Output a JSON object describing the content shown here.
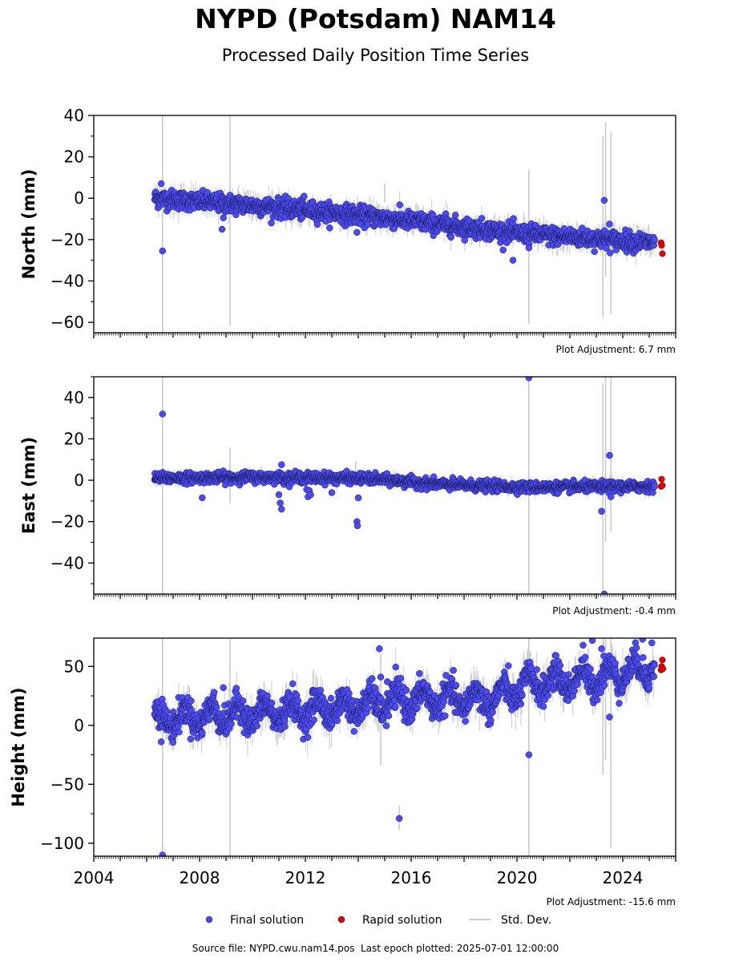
{
  "title": "NYPD (Potsdam) NAM14",
  "subtitle": "Processed Daily Position Time Series",
  "footer": {
    "source_label": "Source file:",
    "source_file": "NYPD.cwu.nam14.pos",
    "last_epoch_label": "Last epoch plotted:",
    "last_epoch": "2025-07-01 12:00:00"
  },
  "legend": [
    {
      "label": "Final solution",
      "marker": "dot",
      "color": "#4b4bf0"
    },
    {
      "label": "Rapid solution",
      "marker": "dot",
      "color": "#e00000"
    },
    {
      "label": "Std. Dev.",
      "marker": "line",
      "color": "#cccccc"
    }
  ],
  "colors": {
    "final": "#4b4bf0",
    "rapid": "#e00000",
    "stddev": "#cccccc"
  },
  "chart_data": [
    {
      "type": "scatter",
      "ylabel": "North (mm)",
      "ylim": [
        -65,
        40
      ],
      "xlim": [
        2004,
        2026
      ],
      "yticks": [
        40,
        20,
        0,
        -20,
        -40,
        -60
      ],
      "adjustment": "Plot Adjustment: 6.7 mm",
      "trend": [
        [
          2006.3,
          0
        ],
        [
          2010,
          -3.5
        ],
        [
          2013,
          -7
        ],
        [
          2016,
          -11
        ],
        [
          2020,
          -17
        ],
        [
          2025.2,
          -21.5
        ]
      ],
      "scatter_noise": 2.2,
      "outliers": [
        [
          2006.55,
          7
        ],
        [
          2006.6,
          -25.5
        ],
        [
          2008.85,
          -15
        ],
        [
          2008.9,
          -9.5
        ],
        [
          2011.95,
          1
        ],
        [
          2013.95,
          -16.5
        ],
        [
          2019.85,
          -30
        ],
        [
          2020.45,
          -24
        ],
        [
          2023.3,
          -1
        ],
        [
          2023.5,
          -12.5
        ]
      ],
      "rapid": [
        [
          2025.45,
          -21.5
        ],
        [
          2025.47,
          -22.8
        ],
        [
          2025.5,
          -26.8
        ]
      ],
      "stddev_bars": [
        [
          2006.6,
          -65,
          40
        ],
        [
          2009.15,
          -62,
          40
        ],
        [
          2015,
          -2,
          7
        ],
        [
          2020.45,
          -61,
          14
        ],
        [
          2023.25,
          -58,
          30
        ],
        [
          2023.35,
          -38,
          37
        ],
        [
          2023.55,
          -56,
          32
        ]
      ]
    },
    {
      "type": "scatter",
      "ylabel": "East (mm)",
      "ylim": [
        -55,
        50
      ],
      "xlim": [
        2004,
        2026
      ],
      "yticks": [
        40,
        20,
        0,
        -20,
        -40
      ],
      "adjustment": "Plot Adjustment: -0.4 mm",
      "trend": [
        [
          2006.3,
          1
        ],
        [
          2010,
          1.5
        ],
        [
          2014,
          1
        ],
        [
          2015.2,
          0
        ],
        [
          2017,
          -2
        ],
        [
          2020.5,
          -3.5
        ],
        [
          2025.2,
          -3
        ]
      ],
      "scatter_noise": 1.2,
      "outliers": [
        [
          2006.6,
          32
        ],
        [
          2008.1,
          -8.5
        ],
        [
          2011,
          -7
        ],
        [
          2011.05,
          -11
        ],
        [
          2011.1,
          -14
        ],
        [
          2011.1,
          7.5
        ],
        [
          2012.05,
          -4.5
        ],
        [
          2012.1,
          -8
        ],
        [
          2012.15,
          -5
        ],
        [
          2012.2,
          -7
        ],
        [
          2013,
          -6
        ],
        [
          2013.95,
          -20
        ],
        [
          2013.97,
          -22
        ],
        [
          2014,
          -8.5
        ],
        [
          2020.45,
          49.5
        ],
        [
          2023.2,
          -15
        ],
        [
          2023.3,
          -55
        ],
        [
          2023.5,
          12
        ],
        [
          2023.55,
          -8
        ]
      ],
      "rapid": [
        [
          2025.45,
          -3
        ],
        [
          2025.47,
          0.5
        ],
        [
          2025.5,
          -2.5
        ]
      ],
      "stddev_bars": [
        [
          2006.6,
          -55,
          50
        ],
        [
          2009.15,
          -11,
          16
        ],
        [
          2013.9,
          -3,
          9
        ],
        [
          2020.45,
          -55,
          50
        ],
        [
          2023.25,
          -55,
          47
        ],
        [
          2023.35,
          -30,
          50
        ],
        [
          2023.55,
          -25,
          50
        ]
      ]
    },
    {
      "type": "scatter",
      "ylabel": "Height (mm)",
      "ylim": [
        -111,
        74
      ],
      "xlim": [
        2004,
        2026
      ],
      "yticks": [
        50,
        0,
        -50,
        -100
      ],
      "adjustment": "Plot Adjustment: -15.6 mm",
      "xlabel_ticks": [
        2004,
        2008,
        2012,
        2016,
        2020,
        2024
      ],
      "trend": [
        [
          2006.3,
          5
        ],
        [
          2010,
          10
        ],
        [
          2014,
          16
        ],
        [
          2016,
          22
        ],
        [
          2019,
          22
        ],
        [
          2020.5,
          35
        ],
        [
          2023,
          40
        ],
        [
          2025.2,
          50
        ]
      ],
      "scatter_noise": 6,
      "seasonal_amp": 8,
      "outliers": [
        [
          2006.55,
          -14
        ],
        [
          2006.6,
          -110
        ],
        [
          2008.55,
          28
        ],
        [
          2008.9,
          32
        ],
        [
          2014.8,
          65
        ],
        [
          2014.85,
          41
        ],
        [
          2015.1,
          37
        ],
        [
          2015.55,
          -79
        ],
        [
          2015.6,
          40
        ],
        [
          2020.45,
          -25
        ],
        [
          2022.5,
          68
        ],
        [
          2022.85,
          72
        ],
        [
          2023.2,
          65
        ],
        [
          2023.5,
          7
        ],
        [
          2024.75,
          73
        ],
        [
          2025.1,
          70
        ]
      ],
      "rapid": [
        [
          2025.45,
          47
        ],
        [
          2025.47,
          50
        ],
        [
          2025.5,
          55.5
        ],
        [
          2025.52,
          48
        ]
      ],
      "stddev_bars": [
        [
          2006.6,
          -111,
          74
        ],
        [
          2009.15,
          -111,
          74
        ],
        [
          2014.85,
          -34,
          60
        ],
        [
          2015.55,
          -89,
          -68
        ],
        [
          2020.45,
          -111,
          74
        ],
        [
          2023.25,
          -42,
          74
        ],
        [
          2023.35,
          -30,
          74
        ],
        [
          2023.55,
          -104,
          74
        ]
      ]
    }
  ]
}
